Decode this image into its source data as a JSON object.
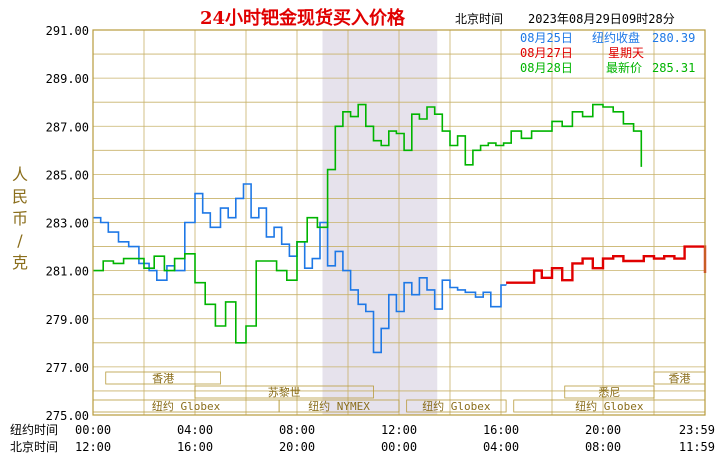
{
  "chart_data": {
    "type": "line",
    "title": "24小时钯金现货买入价格",
    "timestamp": "2023年08月29日09时28分",
    "location_label": "北京时间",
    "ylabel": "人民币/克",
    "ylim": [
      275,
      291
    ],
    "y_ticks": [
      "291.00",
      "289.00",
      "287.00",
      "285.00",
      "283.00",
      "281.00",
      "279.00",
      "277.00",
      "275.00"
    ],
    "x_rows": [
      {
        "label": "纽约时间",
        "ticks": [
          "00:00",
          "04:00",
          "08:00",
          "12:00",
          "16:00",
          "20:00",
          "23:59"
        ]
      },
      {
        "label": "北京时间",
        "ticks": [
          "12:00",
          "16:00",
          "20:00",
          "00:00",
          "04:00",
          "08:00",
          "11:59"
        ]
      }
    ],
    "x_range_hours": [
      0,
      24
    ],
    "shaded_session": [
      9,
      13.5
    ],
    "sessions": [
      {
        "name": "香港",
        "start": 0.5,
        "end": 5
      },
      {
        "name": "苏黎世",
        "start": 4,
        "end": 11
      },
      {
        "name": "纽约 Globex",
        "start": 0,
        "end": 7.3
      },
      {
        "name": "纽约 NYMEX",
        "start": 7.3,
        "end": 12
      },
      {
        "name": "纽约 Globex",
        "start": 12.3,
        "end": 16.2
      },
      {
        "name": "纽约 Globex",
        "start": 16.5,
        "end": 24
      },
      {
        "name": "悉尼",
        "start": 18.5,
        "end": 22
      },
      {
        "name": "香港",
        "start": 22,
        "end": 24
      }
    ],
    "legend": [
      {
        "date": "08月25日",
        "label": "纽约收盘",
        "value": "280.39",
        "color": "#1e78e6"
      },
      {
        "date": "08月27日",
        "label": "星期天",
        "value": "",
        "color": "#e00000"
      },
      {
        "date": "08月28日",
        "label": "最新价",
        "value": "285.31",
        "color": "#00b400"
      }
    ],
    "series": [
      {
        "name": "08月25日",
        "color": "#1e78e6",
        "x": [
          0,
          0.3,
          0.6,
          1,
          1.4,
          1.8,
          2.2,
          2.5,
          2.9,
          3.2,
          3.6,
          4,
          4.3,
          4.6,
          5,
          5.3,
          5.6,
          5.9,
          6.2,
          6.5,
          6.8,
          7.1,
          7.4,
          7.7,
          8,
          8.3,
          8.6,
          8.9,
          9.2,
          9.5,
          9.8,
          10.1,
          10.4,
          10.7,
          11,
          11.3,
          11.6,
          11.9,
          12.2,
          12.5,
          12.8,
          13.1,
          13.4,
          13.7,
          14,
          14.3,
          14.6,
          15,
          15.3,
          15.6,
          16,
          16.2
        ],
        "y": [
          283.2,
          283.0,
          282.6,
          282.2,
          282.0,
          281.3,
          281.0,
          280.6,
          281.2,
          281.0,
          283.0,
          284.2,
          283.4,
          282.8,
          283.6,
          283.2,
          284.0,
          284.6,
          283.2,
          283.6,
          282.4,
          282.8,
          282.1,
          281.6,
          282.2,
          281.1,
          281.5,
          283.0,
          281.2,
          281.8,
          281.0,
          280.2,
          279.6,
          279.3,
          277.6,
          278.6,
          280.0,
          279.3,
          280.5,
          280.0,
          280.7,
          280.2,
          279.4,
          280.6,
          280.3,
          280.2,
          280.1,
          279.9,
          280.1,
          279.5,
          280.4,
          280.39
        ]
      },
      {
        "name": "08月27日",
        "color": "#e00000",
        "x": [
          16.2,
          16.6,
          17,
          17.3,
          17.6,
          18,
          18.4,
          18.8,
          19.2,
          19.6,
          20,
          20.4,
          20.8,
          21.2,
          21.6,
          22,
          22.4,
          22.8,
          23.2,
          23.6,
          24
        ],
        "y": [
          280.5,
          280.5,
          280.5,
          281.0,
          280.7,
          281.1,
          280.6,
          281.3,
          281.5,
          281.1,
          281.5,
          281.6,
          281.4,
          281.4,
          281.6,
          281.5,
          281.6,
          281.5,
          282.0,
          282.0,
          280.9
        ]
      },
      {
        "name": "08月28日",
        "color": "#00b400",
        "x": [
          0,
          0.4,
          0.8,
          1.2,
          1.6,
          2,
          2.4,
          2.8,
          3.2,
          3.6,
          4,
          4.4,
          4.8,
          5.2,
          5.6,
          6,
          6.4,
          6.8,
          7.2,
          7.6,
          8,
          8.4,
          8.8,
          9.2,
          9.5,
          9.8,
          10.1,
          10.4,
          10.7,
          11,
          11.3,
          11.6,
          11.9,
          12.2,
          12.5,
          12.8,
          13.1,
          13.4,
          13.7,
          14,
          14.3,
          14.6,
          14.9,
          15.2,
          15.5,
          15.8,
          16.1,
          16.4,
          16.8,
          17.2,
          17.6,
          18,
          18.4,
          18.8,
          19.2,
          19.6,
          20,
          20.4,
          20.8,
          21.2,
          21.5
        ],
        "y": [
          281.0,
          281.4,
          281.3,
          281.5,
          281.5,
          281.1,
          281.6,
          281.0,
          281.5,
          281.7,
          280.5,
          279.6,
          278.7,
          279.7,
          278.0,
          278.7,
          281.4,
          281.4,
          281.0,
          280.6,
          282.2,
          283.2,
          282.8,
          285.2,
          287.0,
          287.6,
          287.4,
          287.9,
          287.0,
          286.4,
          286.2,
          286.8,
          286.7,
          286.0,
          287.5,
          287.3,
          287.8,
          287.5,
          286.8,
          286.2,
          286.6,
          285.4,
          286.0,
          286.2,
          286.3,
          286.2,
          286.3,
          286.8,
          286.5,
          286.8,
          286.8,
          287.2,
          287.0,
          287.6,
          287.4,
          287.9,
          287.8,
          287.6,
          287.1,
          286.8,
          285.31
        ]
      }
    ]
  }
}
